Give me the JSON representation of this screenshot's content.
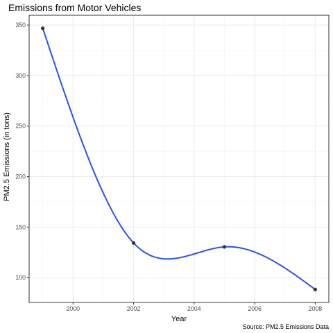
{
  "chart_data": {
    "type": "line",
    "title": "Emissions from Motor Vehicles",
    "xlabel": "Year",
    "ylabel": "PM2.5 Emissions (in tons)",
    "caption": "Source: PM2.5 Emissions Data",
    "x": [
      1999,
      2002,
      2005,
      2008
    ],
    "series": [
      {
        "values": [
          346.82,
          134.31,
          130.43,
          88.28
        ]
      }
    ],
    "xlim": [
      1998.55,
      2008.45
    ],
    "ylim": [
      75.4,
      359.7
    ],
    "x_ticks": [
      2000,
      2002,
      2004,
      2006,
      2008
    ],
    "x_tick_labels": [
      "2000",
      "2002",
      "2004",
      "2006",
      "2008"
    ],
    "y_ticks": [
      100,
      150,
      200,
      250,
      300,
      350
    ],
    "y_tick_labels": [
      "100",
      "150",
      "200",
      "250",
      "300",
      "350"
    ],
    "grid": true,
    "legend": "none",
    "colors": {
      "line": "#2b50f0",
      "point": "#333333",
      "grid_major": "#ebebeb",
      "grid_minor": "#f4f4f4",
      "panel_border": "#333333"
    }
  }
}
